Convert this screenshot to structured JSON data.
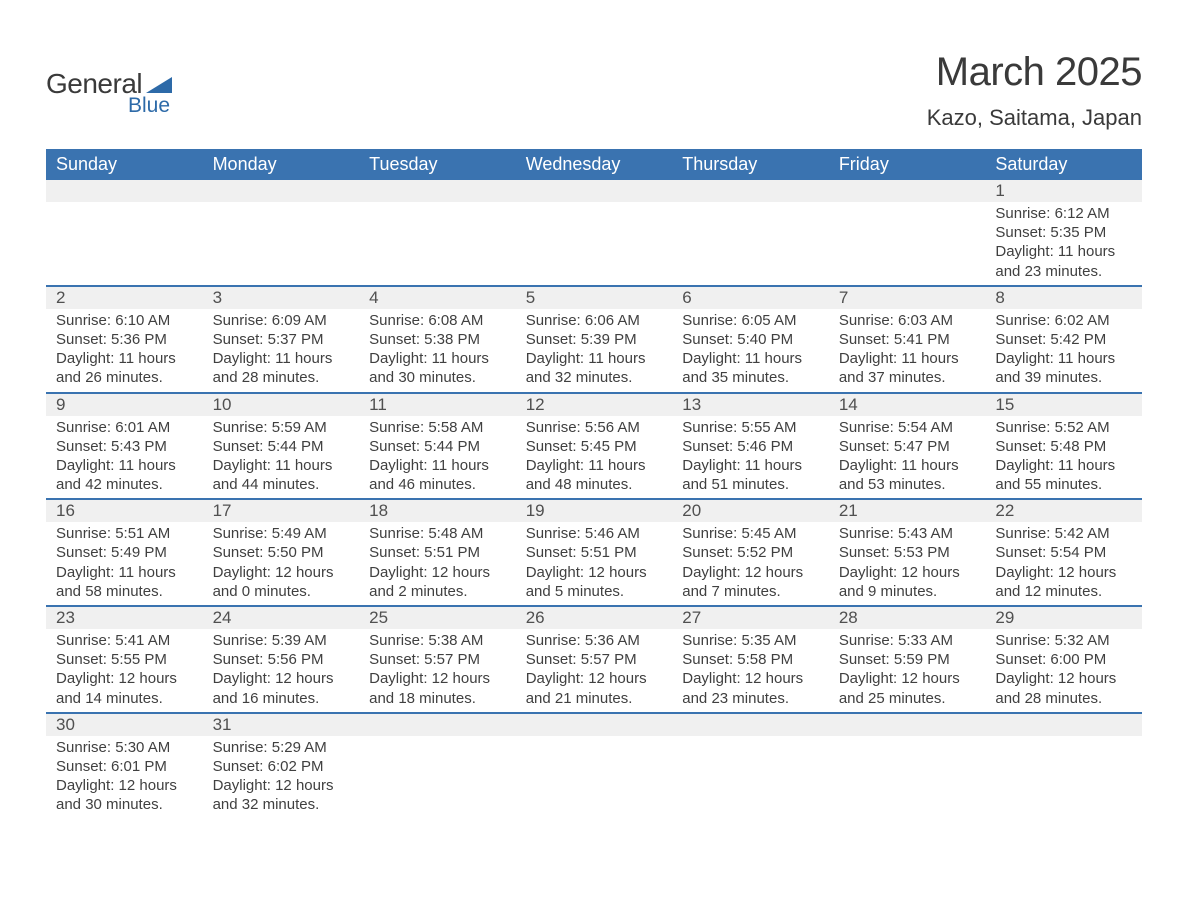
{
  "logo": {
    "text1": "General",
    "text2": "Blue",
    "shape_color": "#2d6aa8"
  },
  "title": "March 2025",
  "location": "Kazo, Saitama, Japan",
  "header_bg": "#3a73b0",
  "header_fg": "#ffffff",
  "daynum_bg": "#f0f0f0",
  "border_color": "#3a73b0",
  "text_color": "#404040",
  "columns": [
    "Sunday",
    "Monday",
    "Tuesday",
    "Wednesday",
    "Thursday",
    "Friday",
    "Saturday"
  ],
  "weeks": [
    [
      null,
      null,
      null,
      null,
      null,
      null,
      {
        "n": "1",
        "sr": "6:12 AM",
        "ss": "5:35 PM",
        "dh": "11",
        "dm": "23"
      }
    ],
    [
      {
        "n": "2",
        "sr": "6:10 AM",
        "ss": "5:36 PM",
        "dh": "11",
        "dm": "26"
      },
      {
        "n": "3",
        "sr": "6:09 AM",
        "ss": "5:37 PM",
        "dh": "11",
        "dm": "28"
      },
      {
        "n": "4",
        "sr": "6:08 AM",
        "ss": "5:38 PM",
        "dh": "11",
        "dm": "30"
      },
      {
        "n": "5",
        "sr": "6:06 AM",
        "ss": "5:39 PM",
        "dh": "11",
        "dm": "32"
      },
      {
        "n": "6",
        "sr": "6:05 AM",
        "ss": "5:40 PM",
        "dh": "11",
        "dm": "35"
      },
      {
        "n": "7",
        "sr": "6:03 AM",
        "ss": "5:41 PM",
        "dh": "11",
        "dm": "37"
      },
      {
        "n": "8",
        "sr": "6:02 AM",
        "ss": "5:42 PM",
        "dh": "11",
        "dm": "39"
      }
    ],
    [
      {
        "n": "9",
        "sr": "6:01 AM",
        "ss": "5:43 PM",
        "dh": "11",
        "dm": "42"
      },
      {
        "n": "10",
        "sr": "5:59 AM",
        "ss": "5:44 PM",
        "dh": "11",
        "dm": "44"
      },
      {
        "n": "11",
        "sr": "5:58 AM",
        "ss": "5:44 PM",
        "dh": "11",
        "dm": "46"
      },
      {
        "n": "12",
        "sr": "5:56 AM",
        "ss": "5:45 PM",
        "dh": "11",
        "dm": "48"
      },
      {
        "n": "13",
        "sr": "5:55 AM",
        "ss": "5:46 PM",
        "dh": "11",
        "dm": "51"
      },
      {
        "n": "14",
        "sr": "5:54 AM",
        "ss": "5:47 PM",
        "dh": "11",
        "dm": "53"
      },
      {
        "n": "15",
        "sr": "5:52 AM",
        "ss": "5:48 PM",
        "dh": "11",
        "dm": "55"
      }
    ],
    [
      {
        "n": "16",
        "sr": "5:51 AM",
        "ss": "5:49 PM",
        "dh": "11",
        "dm": "58"
      },
      {
        "n": "17",
        "sr": "5:49 AM",
        "ss": "5:50 PM",
        "dh": "12",
        "dm": "0"
      },
      {
        "n": "18",
        "sr": "5:48 AM",
        "ss": "5:51 PM",
        "dh": "12",
        "dm": "2"
      },
      {
        "n": "19",
        "sr": "5:46 AM",
        "ss": "5:51 PM",
        "dh": "12",
        "dm": "5"
      },
      {
        "n": "20",
        "sr": "5:45 AM",
        "ss": "5:52 PM",
        "dh": "12",
        "dm": "7"
      },
      {
        "n": "21",
        "sr": "5:43 AM",
        "ss": "5:53 PM",
        "dh": "12",
        "dm": "9"
      },
      {
        "n": "22",
        "sr": "5:42 AM",
        "ss": "5:54 PM",
        "dh": "12",
        "dm": "12"
      }
    ],
    [
      {
        "n": "23",
        "sr": "5:41 AM",
        "ss": "5:55 PM",
        "dh": "12",
        "dm": "14"
      },
      {
        "n": "24",
        "sr": "5:39 AM",
        "ss": "5:56 PM",
        "dh": "12",
        "dm": "16"
      },
      {
        "n": "25",
        "sr": "5:38 AM",
        "ss": "5:57 PM",
        "dh": "12",
        "dm": "18"
      },
      {
        "n": "26",
        "sr": "5:36 AM",
        "ss": "5:57 PM",
        "dh": "12",
        "dm": "21"
      },
      {
        "n": "27",
        "sr": "5:35 AM",
        "ss": "5:58 PM",
        "dh": "12",
        "dm": "23"
      },
      {
        "n": "28",
        "sr": "5:33 AM",
        "ss": "5:59 PM",
        "dh": "12",
        "dm": "25"
      },
      {
        "n": "29",
        "sr": "5:32 AM",
        "ss": "6:00 PM",
        "dh": "12",
        "dm": "28"
      }
    ],
    [
      {
        "n": "30",
        "sr": "5:30 AM",
        "ss": "6:01 PM",
        "dh": "12",
        "dm": "30"
      },
      {
        "n": "31",
        "sr": "5:29 AM",
        "ss": "6:02 PM",
        "dh": "12",
        "dm": "32"
      },
      null,
      null,
      null,
      null,
      null
    ]
  ],
  "labels": {
    "sunrise": "Sunrise:",
    "sunset": "Sunset:",
    "daylight_prefix": "Daylight:",
    "hours_word": "hours",
    "minutes_suffix": "minutes."
  }
}
